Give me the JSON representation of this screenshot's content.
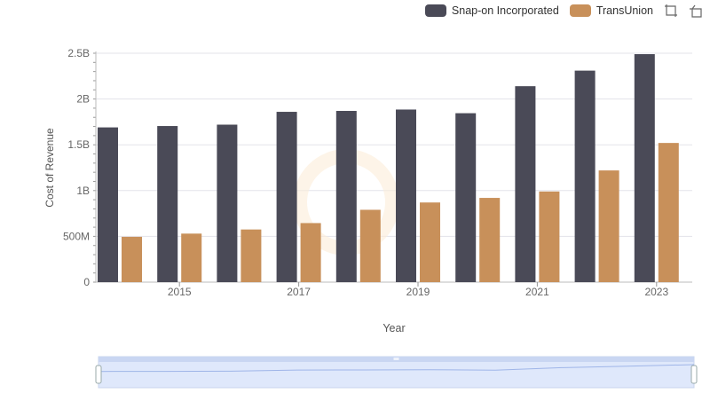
{
  "legend": {
    "series_1": "Snap-on Incorporated",
    "series_2": "TransUnion"
  },
  "toolbar": [
    "zoom-icon",
    "reset-icon"
  ],
  "chart_data": {
    "type": "bar",
    "xlabel": "Year",
    "ylabel": "Cost of Revenue",
    "ylim": [
      0,
      2500000000
    ],
    "yticks": [
      {
        "v": 0,
        "label": "0"
      },
      {
        "v": 500000000,
        "label": "500M"
      },
      {
        "v": 1000000000,
        "label": "1B"
      },
      {
        "v": 1500000000,
        "label": "1.5B"
      },
      {
        "v": 2000000000,
        "label": "2B"
      },
      {
        "v": 2500000000,
        "label": "2.5B"
      }
    ],
    "x": [
      2014,
      2015,
      2016,
      2017,
      2018,
      2019,
      2020,
      2021,
      2022,
      2023
    ],
    "xtick_labels": [
      "2015",
      "2017",
      "2019",
      "2021",
      "2023"
    ],
    "grid": true,
    "legend_position": "top-right",
    "series": [
      {
        "name": "Snap-on Incorporated",
        "color": "#4a4a57",
        "values": [
          1690000000,
          1705000000,
          1720000000,
          1860000000,
          1870000000,
          1885000000,
          1845000000,
          2140000000,
          2310000000,
          2490000000
        ]
      },
      {
        "name": "TransUnion",
        "color": "#c8905a",
        "values": [
          495000000,
          530000000,
          575000000,
          645000000,
          790000000,
          870000000,
          920000000,
          990000000,
          1220000000,
          1520000000
        ]
      }
    ]
  }
}
